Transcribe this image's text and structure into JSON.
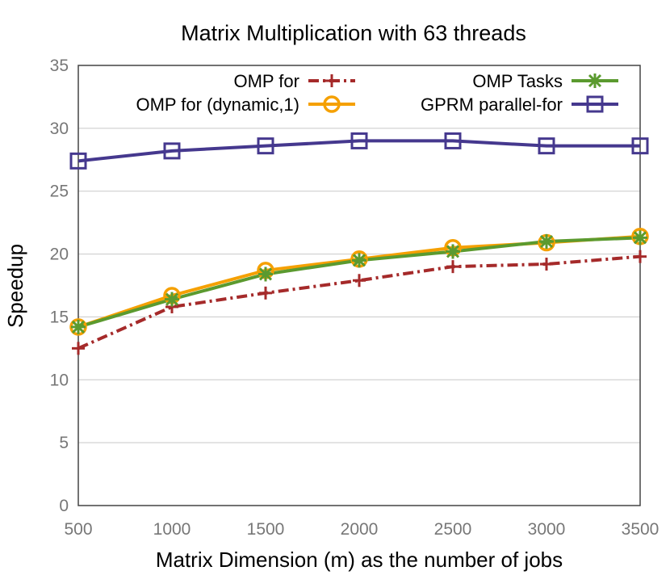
{
  "chart_data": {
    "type": "line",
    "title": "Matrix Multiplication with 63 threads",
    "xlabel": "Matrix Dimension (m) as the number of jobs",
    "ylabel": "Speedup",
    "x": [
      500,
      1000,
      1500,
      2000,
      2500,
      3000,
      3500
    ],
    "xlim": [
      500,
      3500
    ],
    "ylim": [
      0,
      35
    ],
    "xticks": [
      "500",
      "1000",
      "1500",
      "2000",
      "2500",
      "3000",
      "3500"
    ],
    "yticks": [
      "0",
      "5",
      "10",
      "15",
      "20",
      "25",
      "30",
      "35"
    ],
    "grid": "horizontal",
    "legend_position": "top",
    "series": [
      {
        "name": "OMP for",
        "color": "#a52a2a",
        "marker": "plus",
        "dash": "dashdot",
        "values": [
          12.5,
          15.8,
          16.9,
          17.9,
          19.0,
          19.2,
          19.8
        ]
      },
      {
        "name": "OMP for (dynamic,1)",
        "color": "#f5a000",
        "marker": "circle",
        "dash": "solid",
        "values": [
          14.2,
          16.7,
          18.7,
          19.6,
          20.5,
          20.9,
          21.4
        ]
      },
      {
        "name": "OMP Tasks",
        "color": "#5b9a2f",
        "marker": "asterisk",
        "dash": "solid",
        "values": [
          14.2,
          16.4,
          18.4,
          19.5,
          20.2,
          21.0,
          21.3
        ]
      },
      {
        "name": "GPRM parallel-for",
        "color": "#45388e",
        "marker": "square",
        "dash": "solid",
        "values": [
          27.4,
          28.2,
          28.6,
          29.0,
          29.0,
          28.6,
          28.6
        ]
      }
    ]
  }
}
